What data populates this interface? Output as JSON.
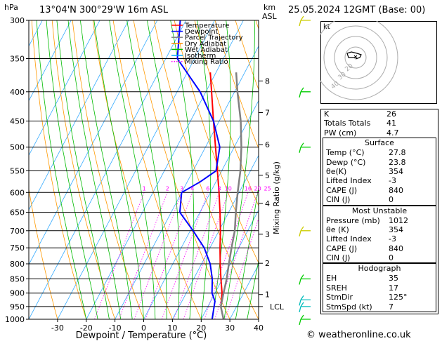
{
  "header": {
    "location": "13°04'N  300°29'W  16m  ASL",
    "datetime": "25.05.2024  12GMT  (Base: 00)",
    "p_unit": "hPa",
    "km_unit": "km",
    "asl_label": "ASL"
  },
  "chart_data": {
    "type": "line",
    "xlabel": "Dewpoint / Temperature (°C)",
    "ylabel": "Mixing Ratio (g/kg)",
    "xlim": [
      -40,
      40
    ],
    "ylim_hpa": [
      1000,
      300
    ],
    "x_ticks": [
      -30,
      -20,
      -10,
      0,
      10,
      20,
      30,
      40
    ],
    "pressure_levels": [
      300,
      350,
      400,
      450,
      500,
      550,
      600,
      650,
      700,
      750,
      800,
      850,
      900,
      950,
      1000
    ],
    "km_ticks": [
      {
        "km": "1",
        "p": 905
      },
      {
        "km": "2",
        "p": 798
      },
      {
        "km": "3",
        "p": 710
      },
      {
        "km": "4",
        "p": 627
      },
      {
        "km": "5",
        "p": 560
      },
      {
        "km": "6",
        "p": 495
      },
      {
        "km": "7",
        "p": 435
      },
      {
        "km": "8",
        "p": 383
      }
    ],
    "lcl_label": "LCL",
    "lcl_p": 950,
    "mixing_ratio_labels": [
      "1",
      "2",
      "3",
      "4",
      "6",
      "8",
      "10",
      "16",
      "20",
      "25"
    ],
    "mixing_ratio_values": [
      1,
      2,
      3,
      4,
      6,
      8,
      10,
      16,
      20,
      25
    ],
    "legend": [
      {
        "name": "Temperature",
        "color": "#ff0000"
      },
      {
        "name": "Dewpoint",
        "color": "#0000ff"
      },
      {
        "name": "Parcel Trajectory",
        "color": "#808080"
      },
      {
        "name": "Dry Adiabat",
        "color": "#ff8c00"
      },
      {
        "name": "Wet Adiabat",
        "color": "#00bb00"
      },
      {
        "name": "Isotherm",
        "color": "#00aaff"
      },
      {
        "name": "Mixing Ratio",
        "color": "#ff00ff"
      }
    ],
    "series": [
      {
        "name": "Temperature",
        "color": "#ff0000",
        "points": [
          [
            1000,
            27.8
          ],
          [
            950,
            24.5
          ],
          [
            900,
            22.5
          ],
          [
            850,
            19.5
          ],
          [
            800,
            16.5
          ],
          [
            750,
            13.5
          ],
          [
            700,
            10.5
          ],
          [
            650,
            7
          ],
          [
            600,
            3
          ],
          [
            550,
            -1.5
          ],
          [
            500,
            -6.5
          ],
          [
            450,
            -12
          ],
          [
            400,
            -18
          ],
          [
            370,
            -22
          ]
        ]
      },
      {
        "name": "Dewpoint",
        "color": "#0000ff",
        "points": [
          [
            1000,
            23.8
          ],
          [
            960,
            22.5
          ],
          [
            930,
            21.5
          ],
          [
            900,
            19
          ],
          [
            850,
            16.5
          ],
          [
            800,
            13
          ],
          [
            750,
            8
          ],
          [
            700,
            1
          ],
          [
            650,
            -7
          ],
          [
            600,
            -10
          ],
          [
            575,
            -5.5
          ],
          [
            550,
            -2
          ],
          [
            500,
            -5
          ],
          [
            450,
            -12
          ],
          [
            400,
            -22
          ],
          [
            350,
            -36
          ],
          [
            300,
            -42
          ]
        ]
      },
      {
        "name": "Parcel Trajectory",
        "color": "#808080",
        "points": [
          [
            1000,
            27.8
          ],
          [
            950,
            24.5
          ],
          [
            900,
            23
          ],
          [
            850,
            21.5
          ],
          [
            800,
            19.5
          ],
          [
            750,
            17.5
          ],
          [
            700,
            15.5
          ],
          [
            650,
            12.5
          ],
          [
            600,
            9.5
          ],
          [
            550,
            6.5
          ],
          [
            500,
            2.5
          ],
          [
            450,
            -2.5
          ],
          [
            400,
            -9
          ],
          [
            370,
            -13
          ]
        ]
      }
    ]
  },
  "wind_barbs": [
    {
      "p": 1000,
      "color": "#00cc00"
    },
    {
      "p": 950,
      "color": "#00bbbb"
    },
    {
      "p": 925,
      "color": "#00bbbb"
    },
    {
      "p": 850,
      "color": "#00cc00"
    },
    {
      "p": 700,
      "color": "#cccc00"
    },
    {
      "p": 500,
      "color": "#00cc00"
    },
    {
      "p": 400,
      "color": "#00cc00"
    },
    {
      "p": 300,
      "color": "#cccc00"
    }
  ],
  "hodograph": {
    "unit": "kt",
    "ring_labels": [
      "20",
      "30",
      "40"
    ]
  },
  "indices": {
    "rows": [
      {
        "k": "K",
        "v": "26"
      },
      {
        "k": "Totals Totals",
        "v": "41"
      },
      {
        "k": "PW (cm)",
        "v": "4.7"
      }
    ]
  },
  "surface": {
    "title": "Surface",
    "rows": [
      {
        "k": "Temp (°C)",
        "v": "27.8"
      },
      {
        "k": "Dewp (°C)",
        "v": "23.8"
      },
      {
        "k": "θe(K)",
        "v": "354"
      },
      {
        "k": "Lifted Index",
        "v": "-3"
      },
      {
        "k": "CAPE (J)",
        "v": "840"
      },
      {
        "k": "CIN (J)",
        "v": "0"
      }
    ]
  },
  "most_unstable": {
    "title": "Most Unstable",
    "rows": [
      {
        "k": "Pressure (mb)",
        "v": "1012"
      },
      {
        "k": "θe (K)",
        "v": "354"
      },
      {
        "k": "Lifted Index",
        "v": "-3"
      },
      {
        "k": "CAPE (J)",
        "v": "840"
      },
      {
        "k": "CIN (J)",
        "v": "0"
      }
    ]
  },
  "hodograph_table": {
    "title": "Hodograph",
    "rows": [
      {
        "k": "EH",
        "v": "35"
      },
      {
        "k": "SREH",
        "v": "17"
      },
      {
        "k": "StmDir",
        "v": "125°"
      },
      {
        "k": "StmSpd (kt)",
        "v": "7"
      }
    ]
  },
  "footer": {
    "copyright": "© weatheronline.co.uk"
  }
}
